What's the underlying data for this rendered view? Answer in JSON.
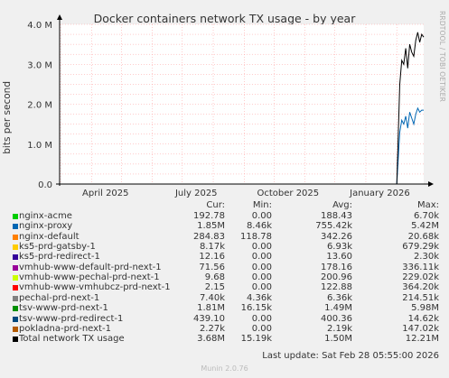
{
  "title": "Docker containers network TX usage - by year",
  "side_text": "RRDTOOL / TOBI OETIKER",
  "colors": {
    "plot_bg": "#ffffff",
    "frame_bg": "#f0f0f0",
    "grid": "#ff9999",
    "axis": "#000000"
  },
  "chart_data": {
    "type": "line",
    "title": "Docker containers network TX usage - by year",
    "ylabel": "bits per second",
    "xlabel": "",
    "x_ticks": [
      "April 2025",
      "July 2025",
      "October 2025",
      "January 2026"
    ],
    "y_ticks": [
      "0.0",
      "1.0 M",
      "2.0 M",
      "3.0 M",
      "4.0 M"
    ],
    "ylim": [
      0,
      4000000
    ],
    "xlim": [
      "2025-02-28",
      "2026-02-28"
    ],
    "grid": true,
    "series": [
      {
        "name": "nginx-proxy",
        "color": "#0066b3",
        "x": [
          "2026-01-24",
          "2026-02-01",
          "2026-02-04",
          "2026-02-06",
          "2026-02-08",
          "2026-02-10",
          "2026-02-12",
          "2026-02-14",
          "2026-02-16",
          "2026-02-18",
          "2026-02-20",
          "2026-02-22",
          "2026-02-24",
          "2026-02-26",
          "2026-02-28"
        ],
        "values": [
          0,
          0,
          1300000,
          1600000,
          1500000,
          1700000,
          1400000,
          1800000,
          1650000,
          1500000,
          1750000,
          1900000,
          1800000,
          1850000,
          1850000
        ]
      },
      {
        "name": "Total network TX usage",
        "color": "#000000",
        "x": [
          "2026-01-24",
          "2026-02-01",
          "2026-02-04",
          "2026-02-06",
          "2026-02-08",
          "2026-02-10",
          "2026-02-12",
          "2026-02-14",
          "2026-02-16",
          "2026-02-18",
          "2026-02-20",
          "2026-02-22",
          "2026-02-24",
          "2026-02-26",
          "2026-02-28"
        ],
        "values": [
          0,
          0,
          2500000,
          3100000,
          3000000,
          3400000,
          2900000,
          3500000,
          3300000,
          3200000,
          3600000,
          3800000,
          3550000,
          3750000,
          3680000
        ]
      }
    ]
  },
  "legend": {
    "headers": {
      "cur": "Cur:",
      "min": "Min:",
      "avg": "Avg:",
      "max": "Max:"
    },
    "rows": [
      {
        "name": "nginx-acme",
        "color": "#00cc00",
        "cur": "192.78",
        "min": "0.00",
        "avg": "188.43",
        "max": "6.70k"
      },
      {
        "name": "nginx-proxy",
        "color": "#0066b3",
        "cur": "1.85M",
        "min": "8.46k",
        "avg": "755.42k",
        "max": "5.42M"
      },
      {
        "name": "nginx-default",
        "color": "#ff8000",
        "cur": "284.83",
        "min": "118.78",
        "avg": "342.26",
        "max": "20.68k"
      },
      {
        "name": "ks5-prd-gatsby-1",
        "color": "#ffcc00",
        "cur": "8.17k",
        "min": "0.00",
        "avg": "6.93k",
        "max": "679.29k"
      },
      {
        "name": "ks5-prd-redirect-1",
        "color": "#330099",
        "cur": "12.16",
        "min": "0.00",
        "avg": "13.60",
        "max": "2.30k"
      },
      {
        "name": "vmhub-www-default-prd-next-1",
        "color": "#990099",
        "cur": "71.56",
        "min": "0.00",
        "avg": "178.16",
        "max": "336.11k"
      },
      {
        "name": "vmhub-www-pechal-prd-next-1",
        "color": "#ccff00",
        "cur": "9.68",
        "min": "0.00",
        "avg": "200.96",
        "max": "229.02k"
      },
      {
        "name": "vmhub-www-vmhubcz-prd-next-1",
        "color": "#ff0000",
        "cur": "2.15",
        "min": "0.00",
        "avg": "122.88",
        "max": "364.20k"
      },
      {
        "name": "pechal-prd-next-1",
        "color": "#808080",
        "cur": "7.40k",
        "min": "4.36k",
        "avg": "6.36k",
        "max": "214.51k"
      },
      {
        "name": "tsv-www-prd-next-1",
        "color": "#008f00",
        "cur": "1.81M",
        "min": "16.15k",
        "avg": "1.49M",
        "max": "5.98M"
      },
      {
        "name": "tsv-www-prd-redirect-1",
        "color": "#00487d",
        "cur": "439.10",
        "min": "0.00",
        "avg": "400.36",
        "max": "14.62k"
      },
      {
        "name": "pokladna-prd-next-1",
        "color": "#b35a00",
        "cur": "2.27k",
        "min": "0.00",
        "avg": "2.19k",
        "max": "147.02k"
      },
      {
        "name": "Total network TX usage",
        "color": "#000000",
        "cur": "3.68M",
        "min": "15.19k",
        "avg": "1.50M",
        "max": "12.21M"
      }
    ]
  },
  "last_update": "Last update: Sat Feb 28 05:55:00 2026",
  "footer": "Munin 2.0.76"
}
